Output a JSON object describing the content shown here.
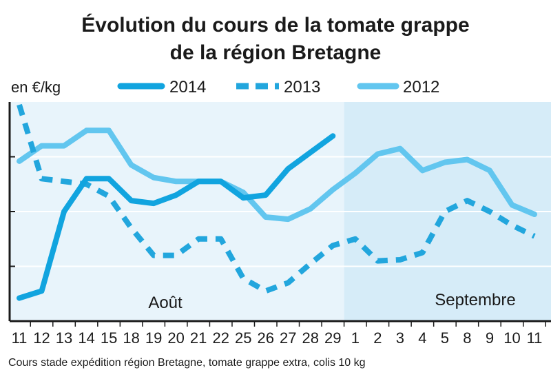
{
  "chart_data": {
    "type": "line",
    "title": "Évolution du cours de la tomate grappe",
    "subtitle": "de la région Bretagne",
    "ylabel": "en €/kg",
    "source_note": "Cours stade expédition région Bretagne, tomate grappe extra, colis 10 kg",
    "x_tick_labels": [
      "11",
      "12",
      "13",
      "14",
      "15",
      "18",
      "19",
      "20",
      "21",
      "22",
      "25",
      "26",
      "27",
      "28",
      "29",
      "1",
      "2",
      "3",
      "4",
      "5",
      "8",
      "9",
      "10",
      "11"
    ],
    "x_tick_display": [
      "11",
      "12",
      "13",
      "14",
      "15",
      "18",
      "19",
      "20",
      "21",
      "22",
      "25",
      "26",
      "27",
      "28",
      "29",
      "1",
      "2",
      "3",
      "4",
      "5",
      "8",
      "9",
      "10",
      "11"
    ],
    "months": [
      {
        "label": "Août",
        "from": 0,
        "to": 14
      },
      {
        "label": "Septembre",
        "from": 15,
        "to": 23
      }
    ],
    "ylim": [
      0,
      4
    ],
    "y_gridlines": [
      1,
      2,
      3
    ],
    "y_tick_labels_shown": false,
    "legend_placement": "top",
    "series": [
      {
        "name": "2014",
        "style": "solid",
        "color": "#11a4df",
        "values": [
          0.42,
          0.55,
          2.0,
          2.6,
          2.6,
          2.2,
          2.15,
          2.3,
          2.55,
          2.55,
          2.25,
          2.3,
          2.78,
          3.08,
          3.38,
          null,
          null,
          null,
          null,
          null,
          null,
          null,
          null,
          null
        ]
      },
      {
        "name": "2013",
        "style": "dashed",
        "color": "#22a6dd",
        "values": [
          3.95,
          2.6,
          2.55,
          2.5,
          2.28,
          1.7,
          1.2,
          1.2,
          1.5,
          1.5,
          0.78,
          0.55,
          0.7,
          1.05,
          1.38,
          1.5,
          1.1,
          1.12,
          1.25,
          2.0,
          2.2,
          2.0,
          1.75,
          1.55
        ]
      },
      {
        "name": "2012",
        "style": "solid",
        "color": "#62c6ef",
        "values": [
          2.92,
          3.2,
          3.2,
          3.48,
          3.48,
          2.85,
          2.62,
          2.55,
          2.55,
          2.55,
          2.35,
          1.9,
          1.86,
          2.05,
          2.4,
          2.7,
          3.05,
          3.15,
          2.75,
          2.9,
          2.95,
          2.75,
          2.12,
          1.95
        ]
      }
    ]
  }
}
